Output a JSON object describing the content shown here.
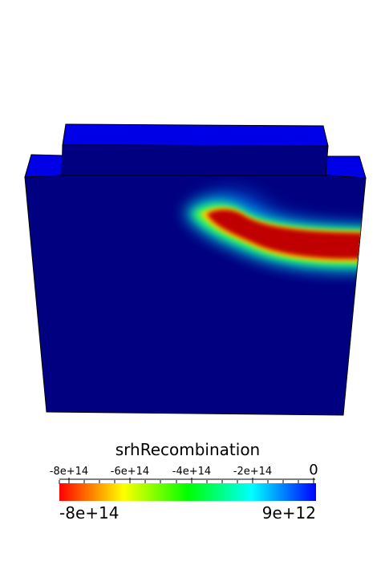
{
  "colorbar": {
    "title": "srhRecombination",
    "tick_labels": [
      "-8e+14",
      "-6e+14",
      "-4e+14",
      "-2e+14",
      "0"
    ],
    "range_min_label": "-8e+14",
    "range_max_label": "9e+12",
    "colormap": [
      "#ff0000",
      "#ffff00",
      "#00ff00",
      "#00ffff",
      "#0000ff"
    ]
  },
  "colors": {
    "background": "#ffffff",
    "body_front": "#000080",
    "body_top": "#0000e6",
    "edge": "#000000"
  }
}
